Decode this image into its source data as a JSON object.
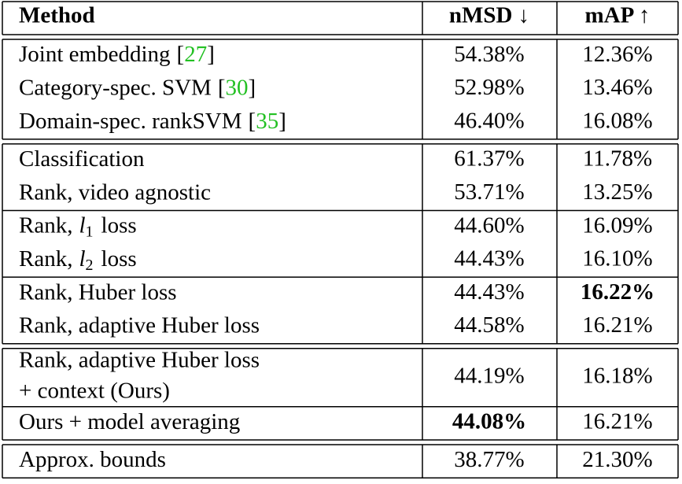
{
  "table": {
    "header": [
      "Method",
      "nMSD ↓",
      "mAP ↑"
    ],
    "groups": [
      {
        "rows": [
          {
            "method": "Joint embedding",
            "cite": [
              "[",
              "27",
              "]"
            ],
            "nmsd": "54.38%",
            "map": "12.36%"
          },
          {
            "method": "Category-spec. SVM",
            "cite": [
              "[",
              "30",
              "]"
            ],
            "nmsd": "52.98%",
            "map": "13.46%"
          },
          {
            "method": "Domain-spec. rankSVM",
            "cite": [
              "[",
              "35",
              "]"
            ],
            "nmsd": "46.40%",
            "map": "16.08%"
          }
        ]
      },
      {
        "rows": [
          {
            "method": "Classification",
            "nmsd": "61.37%",
            "map": "11.78%"
          },
          {
            "method": "Rank, video agnostic",
            "nmsd": "53.71%",
            "map": "13.25%"
          }
        ]
      },
      {
        "rows": [
          {
            "method": "Rank,",
            "var": "l",
            "sub": "1",
            "suffix": "loss",
            "nmsd": "44.60%",
            "map": "16.09%"
          },
          {
            "method": "Rank,",
            "var": "l",
            "sub": "2",
            "suffix": "loss",
            "nmsd": "44.43%",
            "map": "16.10%"
          }
        ]
      },
      {
        "rows": [
          {
            "method": "Rank, Huber loss",
            "nmsd": "44.43%",
            "map": "16.22%",
            "bold": "map"
          },
          {
            "method": "Rank, adaptive Huber loss",
            "nmsd": "44.58%",
            "map": "16.21%"
          }
        ]
      },
      {
        "rows": [
          {
            "method": "Rank, adaptive Huber loss",
            "method_line2": "+ context (Ours)",
            "nmsd": "44.19%",
            "map": "16.18%"
          },
          {
            "method": "Ours + model averaging",
            "nmsd": "44.08%",
            "map": "16.21%",
            "bold": "nmsd"
          }
        ]
      },
      {
        "rows": [
          {
            "method": "Approx. bounds",
            "nmsd": "38.77%",
            "map": "21.30%"
          }
        ]
      }
    ]
  }
}
